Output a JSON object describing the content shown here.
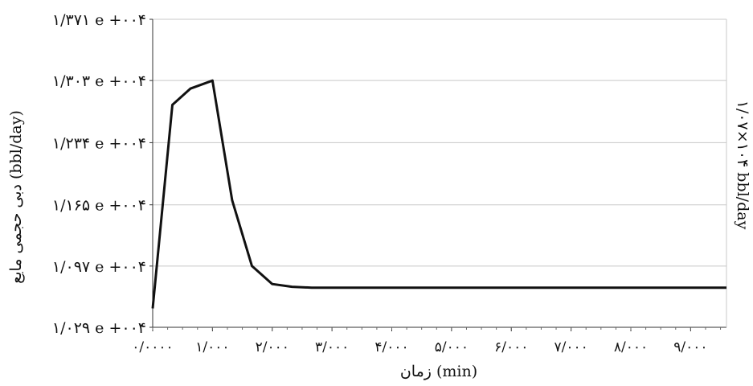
{
  "chart_data": {
    "type": "line",
    "title": "",
    "xlabel": "زمان (min)",
    "ylabel": "دبی حجمی مایع (bbl/day)",
    "right_label": "۱/۰۷×۱۰۴ bbl/day",
    "xlim": [
      0,
      9.6
    ],
    "ylim": [
      10290,
      13710
    ],
    "grid": "horizontal",
    "legend": "none",
    "line_color": "#111111",
    "y_ticks": [
      {
        "value": 13710,
        "label": "۱/۳۷۱ e +۰۰۴"
      },
      {
        "value": 13030,
        "label": "۱/۳۰۳ e +۰۰۴"
      },
      {
        "value": 12340,
        "label": "۱/۲۳۴ e +۰۰۴"
      },
      {
        "value": 11650,
        "label": "۱/۱۶۵ e +۰۰۴"
      },
      {
        "value": 10970,
        "label": "۱/۰۹۷ e +۰۰۴"
      },
      {
        "value": 10290,
        "label": "۱/۰۲۹ e +۰۰۴"
      }
    ],
    "x_ticks": [
      {
        "value": 0,
        "label": "۰/۰۰۰۰"
      },
      {
        "value": 1,
        "label": "۱/۰۰۰"
      },
      {
        "value": 2,
        "label": "۲/۰۰۰"
      },
      {
        "value": 3,
        "label": "۳/۰۰۰"
      },
      {
        "value": 4,
        "label": "۴/۰۰۰"
      },
      {
        "value": 5,
        "label": "۵/۰۰۰"
      },
      {
        "value": 6,
        "label": "۶/۰۰۰"
      },
      {
        "value": 7,
        "label": "۷/۰۰۰"
      },
      {
        "value": 8,
        "label": "۸/۰۰۰"
      },
      {
        "value": 9,
        "label": "۹/۰۰۰"
      }
    ],
    "series": [
      {
        "x": [
          0.0,
          0.33,
          0.63,
          1.0,
          1.33,
          1.66,
          2.0,
          2.33,
          2.66,
          3.0,
          4.0,
          5.0,
          6.0,
          7.0,
          8.0,
          9.0,
          9.6
        ],
        "y": [
          10500,
          12760,
          12940,
          13030,
          11700,
          10970,
          10770,
          10740,
          10730,
          10730,
          10730,
          10730,
          10730,
          10730,
          10730,
          10730,
          10730
        ]
      }
    ]
  }
}
